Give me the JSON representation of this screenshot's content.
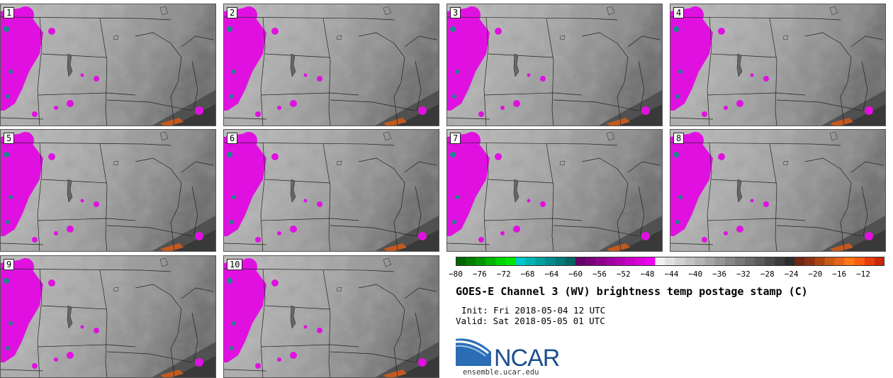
{
  "title": "GOES-E Channel 3 (WV) brightness temp postage stamp (C)",
  "init": "Init: Fri 2018-05-04 12 UTC",
  "valid": "Valid: Sat 2018-05-05 01 UTC",
  "logo_text": "NCAR",
  "url": "ensemble.ucar.edu",
  "panels": [
    "1",
    "2",
    "3",
    "4",
    "5",
    "6",
    "7",
    "8",
    "9",
    "10"
  ],
  "colorbar": {
    "ticks": [
      "−80",
      "−76",
      "−72",
      "−68",
      "−64",
      "−60",
      "−56",
      "−52",
      "−48",
      "−44",
      "−40",
      "−36",
      "−32",
      "−28",
      "−24",
      "−20",
      "−16",
      "−12"
    ],
    "colors": [
      "#006400",
      "#007d00",
      "#009600",
      "#00b400",
      "#00d200",
      "#00e600",
      "#00c8c8",
      "#00b4b4",
      "#00a0a0",
      "#008c8c",
      "#007878",
      "#006464",
      "#640064",
      "#780078",
      "#8c008c",
      "#a000a0",
      "#b400b4",
      "#c800c8",
      "#dc00dc",
      "#f000f0",
      "#f0f0f0",
      "#e1e1e1",
      "#d2d2d2",
      "#c3c3c3",
      "#b4b4b4",
      "#a5a5a5",
      "#969696",
      "#878787",
      "#787878",
      "#696969",
      "#5a5a5a",
      "#4b4b4b",
      "#3c3c3c",
      "#2d2d2d",
      "#6e2814",
      "#8c3214",
      "#aa4614",
      "#c85a14",
      "#e6641e",
      "#ff7814",
      "#ff5a14",
      "#e63c0a",
      "#c8280a"
    ]
  }
}
